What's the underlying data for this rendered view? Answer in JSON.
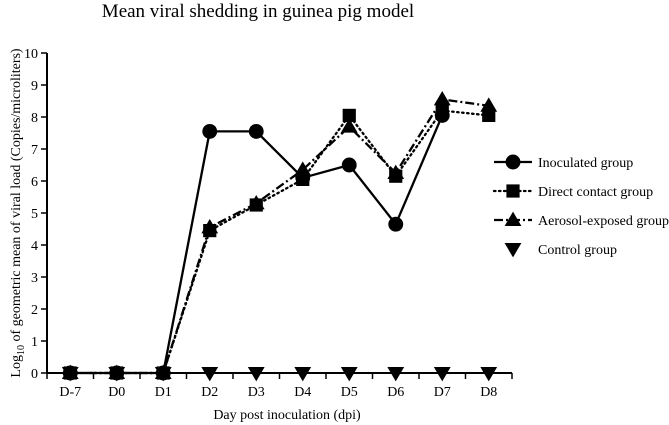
{
  "chart_data": {
    "type": "line",
    "title": "Mean viral shedding in guinea pig model",
    "xlabel": "Day post inoculation (dpi)",
    "ylabel_parts": {
      "prefix": "Log",
      "subscript": "10",
      "suffix": " of geometric mean of viral load (Copies/microliters)"
    },
    "categories": [
      "D-7",
      "D0",
      "D1",
      "D2",
      "D3",
      "D4",
      "D5",
      "D6",
      "D7",
      "D8"
    ],
    "ylim": [
      0,
      10
    ],
    "yticks": [
      0,
      1,
      2,
      3,
      4,
      5,
      6,
      7,
      8,
      9,
      10
    ],
    "grid": false,
    "legend_position": "right",
    "series": [
      {
        "name": "Inoculated group",
        "marker": "circle",
        "line": "solid",
        "values": [
          0,
          0,
          0,
          7.55,
          7.55,
          6.1,
          6.5,
          4.65,
          8.05,
          null
        ]
      },
      {
        "name": "Direct contact group",
        "marker": "square",
        "line": "dotted",
        "values": [
          0,
          0,
          0,
          4.45,
          5.25,
          6.05,
          8.05,
          6.15,
          8.2,
          8.05
        ]
      },
      {
        "name": "Aerosol-exposed group",
        "marker": "triangle-up",
        "line": "dashdot",
        "values": [
          0,
          0,
          0,
          4.55,
          5.3,
          6.35,
          7.7,
          6.25,
          8.55,
          8.35
        ]
      },
      {
        "name": "Control group",
        "marker": "triangle-down",
        "line": "none",
        "values": [
          0,
          0,
          0,
          0,
          0,
          0,
          0,
          0,
          0,
          0
        ]
      }
    ]
  }
}
